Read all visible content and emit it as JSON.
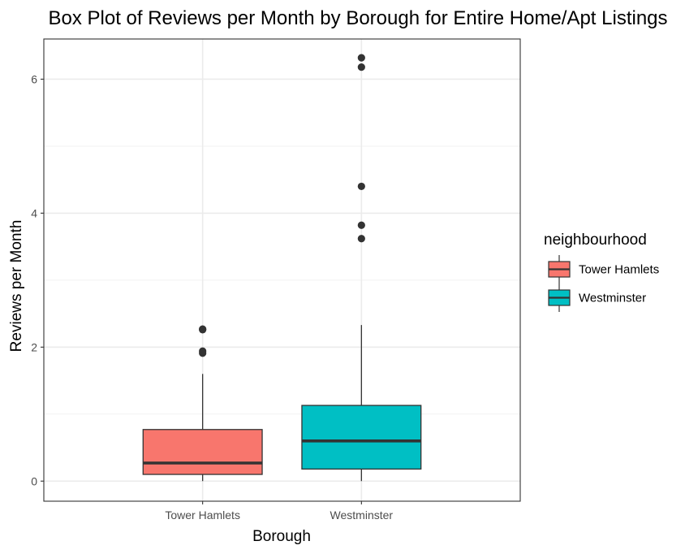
{
  "chart_data": {
    "type": "boxplot",
    "title": "Box Plot of Reviews per Month by Borough for Entire Home/Apt Listings",
    "xlabel": "Borough",
    "ylabel": "Reviews per Month",
    "categories": [
      "Tower Hamlets",
      "Westminster"
    ],
    "yticks": [
      "0",
      "2",
      "4",
      "6"
    ],
    "ylim": [
      -0.3,
      6.6
    ],
    "grid": true,
    "legend": {
      "title": "neighbourhood",
      "position": "right",
      "entries": [
        "Tower Hamlets",
        "Westminster"
      ]
    },
    "series": [
      {
        "category": "Tower Hamlets",
        "color": "#F8766D",
        "whisker_low": 0.0,
        "q1": 0.1,
        "median": 0.27,
        "q3": 0.77,
        "whisker_high": 1.6,
        "outliers": [
          1.91,
          1.94,
          2.26,
          2.27
        ]
      },
      {
        "category": "Westminster",
        "color": "#00BFC4",
        "whisker_low": 0.0,
        "q1": 0.18,
        "median": 0.6,
        "q3": 1.13,
        "whisker_high": 2.33,
        "outliers": [
          3.62,
          3.82,
          4.4,
          6.18,
          6.32
        ]
      }
    ]
  }
}
